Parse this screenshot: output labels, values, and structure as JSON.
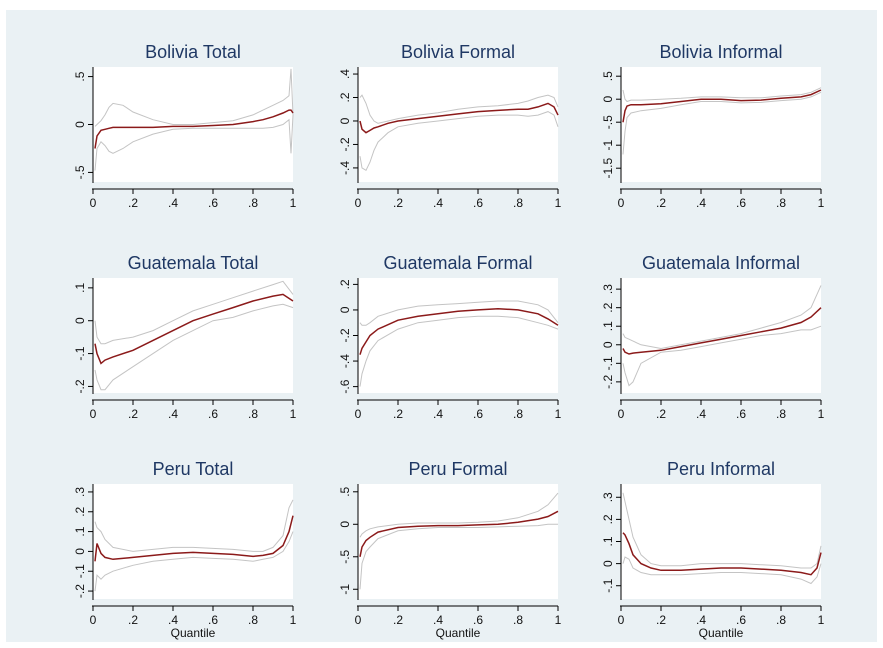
{
  "colors": {
    "background": "#eaf1f4",
    "title": "#1f3864",
    "estimate": "#8b1a1a",
    "band": "#c4c4c4"
  },
  "chart_data": [
    {
      "type": "line",
      "title": "Bolivia Total",
      "xlabel": "",
      "xlim": [
        0,
        1
      ],
      "ylim": [
        -0.6,
        0.6
      ],
      "xticks": [
        0,
        0.2,
        0.4,
        0.6,
        0.8,
        1
      ],
      "xtick_labels": [
        "0",
        ".2",
        ".4",
        ".6",
        ".8",
        "1"
      ],
      "yticks": [
        -0.5,
        0,
        0.5
      ],
      "ytick_labels": [
        "-.5",
        "0",
        ".5"
      ],
      "x": [
        0.01,
        0.02,
        0.04,
        0.06,
        0.08,
        0.1,
        0.15,
        0.2,
        0.3,
        0.4,
        0.5,
        0.6,
        0.7,
        0.8,
        0.85,
        0.9,
        0.95,
        0.98,
        0.99,
        1.0
      ],
      "series": [
        {
          "values": [
            -0.25,
            -0.12,
            -0.06,
            -0.05,
            -0.04,
            -0.03,
            -0.03,
            -0.03,
            -0.03,
            -0.02,
            -0.02,
            -0.01,
            0.0,
            0.03,
            0.05,
            0.08,
            0.12,
            0.15,
            0.15,
            0.12
          ]
        },
        {
          "values": [
            -0.02,
            0.0,
            0.04,
            0.1,
            0.18,
            0.22,
            0.2,
            0.13,
            0.05,
            0.0,
            0.0,
            0.02,
            0.04,
            0.1,
            0.15,
            0.2,
            0.25,
            0.3,
            0.58,
            0.1
          ]
        },
        {
          "values": [
            -0.48,
            -0.25,
            -0.18,
            -0.22,
            -0.28,
            -0.3,
            -0.25,
            -0.18,
            -0.1,
            -0.05,
            -0.04,
            -0.04,
            -0.04,
            -0.04,
            -0.04,
            -0.03,
            0.0,
            0.05,
            -0.3,
            0.1
          ]
        }
      ]
    },
    {
      "type": "line",
      "title": "Bolivia Formal",
      "xlabel": "",
      "xlim": [
        0,
        1
      ],
      "ylim": [
        -0.52,
        0.46
      ],
      "xticks": [
        0,
        0.2,
        0.4,
        0.6,
        0.8,
        1
      ],
      "xtick_labels": [
        "0",
        ".2",
        ".4",
        ".6",
        ".8",
        "1"
      ],
      "yticks": [
        -0.4,
        -0.2,
        0,
        0.2,
        0.4
      ],
      "ytick_labels": [
        "-.4",
        "-.2",
        "0",
        ".2",
        ".4"
      ],
      "x": [
        0.01,
        0.02,
        0.04,
        0.06,
        0.08,
        0.1,
        0.15,
        0.2,
        0.3,
        0.4,
        0.5,
        0.6,
        0.7,
        0.8,
        0.85,
        0.9,
        0.95,
        0.98,
        1.0
      ],
      "series": [
        {
          "values": [
            0.0,
            -0.07,
            -0.1,
            -0.08,
            -0.06,
            -0.05,
            -0.02,
            0.0,
            0.02,
            0.04,
            0.06,
            0.08,
            0.09,
            0.1,
            0.1,
            0.12,
            0.15,
            0.12,
            0.05
          ]
        },
        {
          "values": [
            0.2,
            0.22,
            0.15,
            0.05,
            0.0,
            -0.02,
            0.0,
            0.02,
            0.05,
            0.07,
            0.1,
            0.12,
            0.13,
            0.15,
            0.17,
            0.2,
            0.22,
            0.2,
            0.12
          ]
        },
        {
          "values": [
            -0.3,
            -0.4,
            -0.42,
            -0.35,
            -0.25,
            -0.18,
            -0.1,
            -0.05,
            -0.02,
            0.0,
            0.02,
            0.04,
            0.05,
            0.05,
            0.04,
            0.05,
            0.08,
            0.05,
            -0.05
          ]
        }
      ]
    },
    {
      "type": "line",
      "title": "Bolivia Informal",
      "xlabel": "",
      "xlim": [
        0,
        1
      ],
      "ylim": [
        -1.8,
        0.7
      ],
      "xticks": [
        0,
        0.2,
        0.4,
        0.6,
        0.8,
        1
      ],
      "xtick_labels": [
        "0",
        ".2",
        ".4",
        ".6",
        ".8",
        "1"
      ],
      "yticks": [
        -1.5,
        -1,
        -0.5,
        0,
        0.5
      ],
      "ytick_labels": [
        "-1.5",
        "-1",
        "-.5",
        "0",
        ".5"
      ],
      "x": [
        0.01,
        0.02,
        0.03,
        0.05,
        0.1,
        0.2,
        0.3,
        0.4,
        0.5,
        0.6,
        0.7,
        0.8,
        0.9,
        0.95,
        1.0
      ],
      "series": [
        {
          "values": [
            -0.5,
            -0.25,
            -0.15,
            -0.12,
            -0.12,
            -0.1,
            -0.05,
            0.0,
            0.0,
            -0.03,
            -0.02,
            0.02,
            0.05,
            0.1,
            0.2
          ]
        },
        {
          "values": [
            0.2,
            0.0,
            -0.05,
            -0.02,
            -0.02,
            0.0,
            0.02,
            0.05,
            0.05,
            0.03,
            0.03,
            0.07,
            0.1,
            0.15,
            0.25
          ]
        },
        {
          "values": [
            -1.2,
            -0.7,
            -0.4,
            -0.3,
            -0.25,
            -0.2,
            -0.12,
            -0.05,
            -0.05,
            -0.08,
            -0.07,
            -0.03,
            0.0,
            0.05,
            0.15
          ]
        }
      ]
    },
    {
      "type": "line",
      "title": "Guatemala Total",
      "xlabel": "",
      "xlim": [
        0,
        1
      ],
      "ylim": [
        -0.22,
        0.13
      ],
      "xticks": [
        0,
        0.2,
        0.4,
        0.6,
        0.8,
        1
      ],
      "xtick_labels": [
        "0",
        ".2",
        ".4",
        ".6",
        ".8",
        "1"
      ],
      "yticks": [
        -0.2,
        -0.1,
        0,
        0.1
      ],
      "ytick_labels": [
        "-.2",
        "-.1",
        "0",
        ".1"
      ],
      "x": [
        0.01,
        0.02,
        0.04,
        0.06,
        0.1,
        0.2,
        0.3,
        0.4,
        0.5,
        0.6,
        0.7,
        0.8,
        0.9,
        0.95,
        1.0
      ],
      "series": [
        {
          "values": [
            -0.07,
            -0.1,
            -0.13,
            -0.12,
            -0.11,
            -0.09,
            -0.06,
            -0.03,
            0.0,
            0.02,
            0.04,
            0.06,
            0.075,
            0.08,
            0.06
          ]
        },
        {
          "values": [
            0.0,
            -0.05,
            -0.07,
            -0.07,
            -0.06,
            -0.05,
            -0.03,
            0.0,
            0.03,
            0.05,
            0.07,
            0.09,
            0.11,
            0.12,
            0.08
          ]
        },
        {
          "values": [
            -0.15,
            -0.18,
            -0.21,
            -0.21,
            -0.18,
            -0.14,
            -0.1,
            -0.06,
            -0.03,
            0.0,
            0.01,
            0.03,
            0.045,
            0.05,
            0.04
          ]
        }
      ]
    },
    {
      "type": "line",
      "title": "Guatemala Formal",
      "xlabel": "",
      "xlim": [
        0,
        1
      ],
      "ylim": [
        -0.65,
        0.25
      ],
      "xticks": [
        0,
        0.2,
        0.4,
        0.6,
        0.8,
        1
      ],
      "xtick_labels": [
        "0",
        ".2",
        ".4",
        ".6",
        ".8",
        "1"
      ],
      "yticks": [
        -0.6,
        -0.4,
        -0.2,
        0,
        0.2
      ],
      "ytick_labels": [
        "-.6",
        "-.4",
        "-.2",
        "0",
        ".2"
      ],
      "x": [
        0.01,
        0.02,
        0.04,
        0.06,
        0.1,
        0.2,
        0.3,
        0.4,
        0.5,
        0.6,
        0.7,
        0.8,
        0.9,
        0.95,
        1.0
      ],
      "series": [
        {
          "values": [
            -0.35,
            -0.3,
            -0.25,
            -0.2,
            -0.15,
            -0.08,
            -0.05,
            -0.03,
            -0.01,
            0.0,
            0.01,
            0.0,
            -0.03,
            -0.07,
            -0.12
          ]
        },
        {
          "values": [
            -0.1,
            -0.12,
            -0.12,
            -0.1,
            -0.05,
            0.0,
            0.03,
            0.04,
            0.05,
            0.06,
            0.07,
            0.07,
            0.04,
            0.0,
            -0.1
          ]
        },
        {
          "values": [
            -0.6,
            -0.5,
            -0.4,
            -0.32,
            -0.24,
            -0.15,
            -0.1,
            -0.08,
            -0.06,
            -0.05,
            -0.05,
            -0.06,
            -0.1,
            -0.12,
            -0.15
          ]
        }
      ]
    },
    {
      "type": "line",
      "title": "Guatemala Informal",
      "xlabel": "",
      "xlim": [
        0,
        1
      ],
      "ylim": [
        -0.26,
        0.36
      ],
      "xticks": [
        0,
        0.2,
        0.4,
        0.6,
        0.8,
        1
      ],
      "xtick_labels": [
        "0",
        ".2",
        ".4",
        ".6",
        ".8",
        "1"
      ],
      "yticks": [
        -0.2,
        -0.1,
        0,
        0.1,
        0.2,
        0.3
      ],
      "ytick_labels": [
        "-.2",
        "-.1",
        "0",
        ".1",
        ".2",
        ".3"
      ],
      "x": [
        0.01,
        0.02,
        0.04,
        0.06,
        0.1,
        0.2,
        0.3,
        0.4,
        0.5,
        0.6,
        0.7,
        0.8,
        0.9,
        0.95,
        1.0
      ],
      "series": [
        {
          "values": [
            -0.02,
            -0.04,
            -0.05,
            -0.045,
            -0.04,
            -0.03,
            -0.01,
            0.01,
            0.03,
            0.05,
            0.07,
            0.09,
            0.12,
            0.15,
            0.2
          ]
        },
        {
          "values": [
            0.06,
            0.04,
            0.03,
            0.02,
            0.0,
            -0.02,
            0.0,
            0.02,
            0.04,
            0.06,
            0.09,
            0.12,
            0.16,
            0.2,
            0.32
          ]
        },
        {
          "values": [
            -0.1,
            -0.15,
            -0.22,
            -0.2,
            -0.1,
            -0.04,
            -0.03,
            -0.01,
            0.01,
            0.03,
            0.05,
            0.06,
            0.08,
            0.08,
            0.1
          ]
        }
      ]
    },
    {
      "type": "line",
      "title": "Peru Total",
      "xlabel": "Quantile",
      "xlim": [
        0,
        1
      ],
      "ylim": [
        -0.24,
        0.34
      ],
      "xticks": [
        0,
        0.2,
        0.4,
        0.6,
        0.8,
        1
      ],
      "xtick_labels": [
        "0",
        ".2",
        ".4",
        ".6",
        ".8",
        "1"
      ],
      "yticks": [
        -0.2,
        -0.1,
        0,
        0.1,
        0.2,
        0.3
      ],
      "ytick_labels": [
        "-.2",
        "-.1",
        "0",
        ".1",
        ".2",
        ".3"
      ],
      "x": [
        0.01,
        0.02,
        0.04,
        0.06,
        0.1,
        0.2,
        0.3,
        0.4,
        0.5,
        0.6,
        0.7,
        0.8,
        0.85,
        0.9,
        0.95,
        0.98,
        1.0
      ],
      "series": [
        {
          "values": [
            -0.05,
            0.04,
            -0.01,
            -0.03,
            -0.04,
            -0.03,
            -0.02,
            -0.01,
            -0.005,
            -0.01,
            -0.015,
            -0.025,
            -0.02,
            -0.01,
            0.03,
            0.1,
            0.18
          ]
        },
        {
          "values": [
            0.15,
            0.12,
            0.1,
            0.06,
            0.02,
            0.0,
            0.01,
            0.02,
            0.02,
            0.015,
            0.01,
            0.0,
            0.0,
            0.02,
            0.08,
            0.22,
            0.26
          ]
        },
        {
          "values": [
            -0.2,
            -0.12,
            -0.14,
            -0.12,
            -0.1,
            -0.07,
            -0.05,
            -0.04,
            -0.03,
            -0.035,
            -0.04,
            -0.05,
            -0.04,
            -0.03,
            0.0,
            0.05,
            0.1
          ]
        }
      ]
    },
    {
      "type": "line",
      "title": "Peru Formal",
      "xlabel": "Quantile",
      "xlim": [
        0,
        1
      ],
      "ylim": [
        -1.15,
        0.62
      ],
      "xticks": [
        0,
        0.2,
        0.4,
        0.6,
        0.8,
        1
      ],
      "xtick_labels": [
        "0",
        ".2",
        ".4",
        ".6",
        ".8",
        "1"
      ],
      "yticks": [
        -1,
        -0.5,
        0,
        0.5
      ],
      "ytick_labels": [
        "-1",
        "-.5",
        "0",
        ".5"
      ],
      "x": [
        0.01,
        0.02,
        0.04,
        0.06,
        0.1,
        0.2,
        0.3,
        0.4,
        0.5,
        0.6,
        0.7,
        0.8,
        0.9,
        0.95,
        1.0
      ],
      "series": [
        {
          "values": [
            -0.5,
            -0.35,
            -0.25,
            -0.2,
            -0.12,
            -0.05,
            -0.03,
            -0.02,
            -0.02,
            -0.01,
            0.0,
            0.03,
            0.08,
            0.12,
            0.2
          ]
        },
        {
          "values": [
            -0.2,
            -0.15,
            -0.1,
            -0.07,
            -0.04,
            0.0,
            0.02,
            0.02,
            0.02,
            0.03,
            0.05,
            0.1,
            0.2,
            0.3,
            0.48
          ]
        },
        {
          "values": [
            -1.0,
            -0.6,
            -0.42,
            -0.35,
            -0.22,
            -0.1,
            -0.07,
            -0.05,
            -0.05,
            -0.05,
            -0.04,
            -0.03,
            -0.02,
            0.0,
            0.0
          ]
        }
      ]
    },
    {
      "type": "line",
      "title": "Peru Informal",
      "xlabel": "Quantile",
      "xlim": [
        0,
        1
      ],
      "ylim": [
        -0.16,
        0.36
      ],
      "xticks": [
        0,
        0.2,
        0.4,
        0.6,
        0.8,
        1
      ],
      "xtick_labels": [
        "0",
        ".2",
        ".4",
        ".6",
        ".8",
        "1"
      ],
      "yticks": [
        -0.1,
        0,
        0.1,
        0.2,
        0.3
      ],
      "ytick_labels": [
        "-.1",
        "0",
        ".1",
        ".2",
        ".3"
      ],
      "x": [
        0.01,
        0.02,
        0.04,
        0.06,
        0.1,
        0.15,
        0.2,
        0.3,
        0.4,
        0.5,
        0.6,
        0.7,
        0.8,
        0.9,
        0.95,
        0.98,
        1.0
      ],
      "series": [
        {
          "values": [
            0.14,
            0.13,
            0.09,
            0.04,
            0.0,
            -0.02,
            -0.03,
            -0.03,
            -0.025,
            -0.02,
            -0.02,
            -0.025,
            -0.03,
            -0.04,
            -0.05,
            -0.02,
            0.05
          ]
        },
        {
          "values": [
            0.32,
            0.28,
            0.2,
            0.12,
            0.04,
            0.0,
            -0.01,
            -0.01,
            0.0,
            0.0,
            0.0,
            -0.005,
            -0.01,
            -0.02,
            -0.02,
            0.0,
            0.08
          ]
        },
        {
          "values": [
            0.0,
            0.03,
            0.02,
            -0.02,
            -0.04,
            -0.05,
            -0.05,
            -0.05,
            -0.045,
            -0.04,
            -0.04,
            -0.045,
            -0.05,
            -0.07,
            -0.09,
            -0.06,
            0.0
          ]
        }
      ]
    }
  ]
}
